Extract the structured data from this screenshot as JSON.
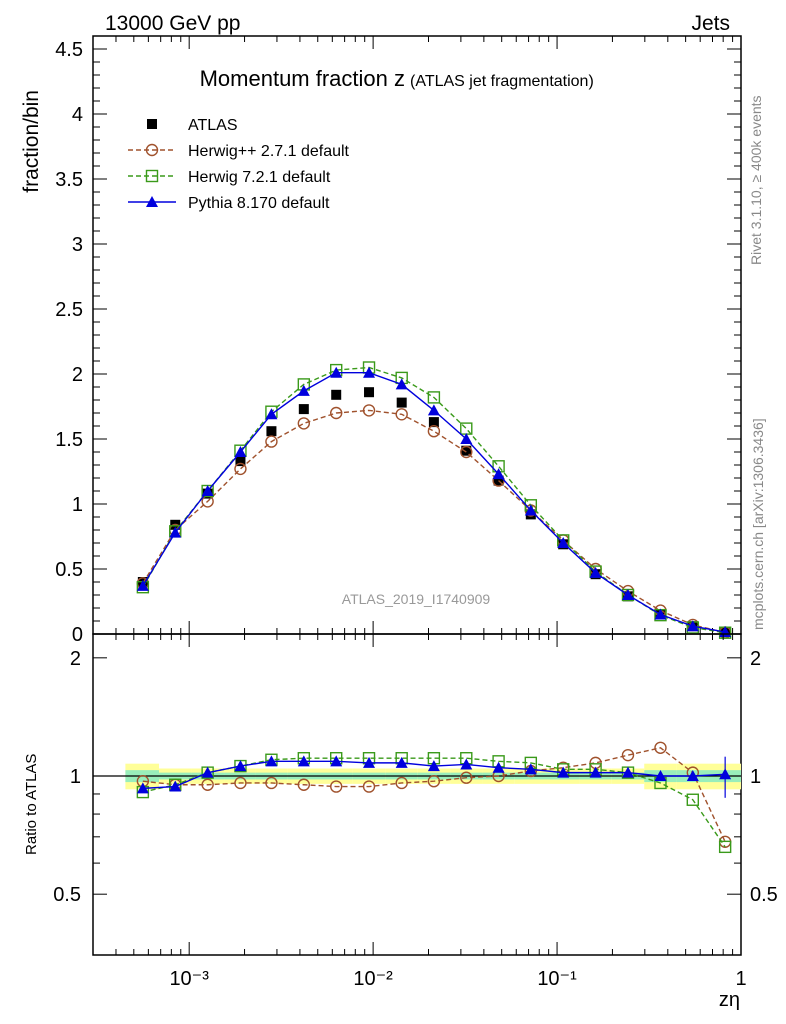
{
  "header": {
    "left_label": "13000 GeV pp",
    "right_label": "Jets",
    "side_label_top": "Rivet 3.1.10, ≥ 400k events",
    "side_label_bottom": "mcplots.cern.ch [arXiv:1306.3436]",
    "analysis_id": "ATLAS_2019_I1740909"
  },
  "colors": {
    "atlas": "#000000",
    "herwig_pp": "#a0522d",
    "herwig7": "#3a9a1a",
    "pythia": "#0000dd",
    "band_yellow": "#ffff99",
    "band_green": "#99eebb"
  },
  "chart_data": [
    {
      "type": "scatter",
      "title": "Momentum fraction z",
      "title_suffix": "(ATLAS jet fragmentation)",
      "ylabel": "fraction/bin",
      "xscale": "log",
      "xlim": [
        0.0003,
        1.0
      ],
      "ylim": [
        0,
        4.6
      ],
      "y_ticks": [
        "0",
        "0.5",
        "1",
        "1.5",
        "2",
        "2.5",
        "3",
        "3.5",
        "4",
        "4.5"
      ],
      "legend_position": "top-left",
      "x": [
        0.00056,
        0.00084,
        0.00126,
        0.0019,
        0.0028,
        0.0042,
        0.0063,
        0.0095,
        0.0143,
        0.0214,
        0.0321,
        0.0481,
        0.072,
        0.108,
        0.162,
        0.243,
        0.365,
        0.547,
        0.82
      ],
      "series": [
        {
          "name": "ATLAS",
          "marker": "filled-square",
          "values": [
            0.4,
            0.84,
            1.08,
            1.33,
            1.56,
            1.73,
            1.84,
            1.86,
            1.78,
            1.63,
            1.41,
            1.18,
            0.92,
            0.69,
            0.46,
            0.29,
            0.15,
            0.06,
            0.015
          ]
        },
        {
          "name": "Herwig++ 2.7.1 default",
          "marker": "open-circle",
          "line": "dashed",
          "values": [
            0.39,
            0.8,
            1.02,
            1.27,
            1.48,
            1.62,
            1.7,
            1.72,
            1.69,
            1.56,
            1.4,
            1.18,
            0.95,
            0.72,
            0.5,
            0.33,
            0.18,
            0.07,
            0.012
          ]
        },
        {
          "name": "Herwig 7.2.1 default",
          "marker": "open-square",
          "line": "dashed",
          "values": [
            0.36,
            0.79,
            1.1,
            1.41,
            1.71,
            1.92,
            2.03,
            2.05,
            1.97,
            1.82,
            1.58,
            1.29,
            0.99,
            0.72,
            0.48,
            0.3,
            0.145,
            0.05,
            0.01
          ]
        },
        {
          "name": "Pythia 8.170 default",
          "marker": "filled-triangle",
          "line": "solid",
          "values": [
            0.37,
            0.78,
            1.1,
            1.4,
            1.69,
            1.87,
            2.01,
            2.01,
            1.92,
            1.72,
            1.5,
            1.23,
            0.95,
            0.7,
            0.47,
            0.3,
            0.15,
            0.06,
            0.015
          ]
        }
      ]
    },
    {
      "type": "scatter",
      "ylabel": "Ratio to ATLAS",
      "xlabel": "zη",
      "xscale": "log",
      "xlim": [
        0.0003,
        1.0
      ],
      "ylim": [
        0.35,
        2.3
      ],
      "y_ticks": [
        "0.5",
        "1",
        "2"
      ],
      "x_ticks": [
        "10⁻³",
        "10⁻²",
        "10⁻¹",
        "1"
      ],
      "reference_line": 1.0,
      "x": [
        0.00056,
        0.00084,
        0.00126,
        0.0019,
        0.0028,
        0.0042,
        0.0063,
        0.0095,
        0.0143,
        0.0214,
        0.0321,
        0.0481,
        0.072,
        0.108,
        0.162,
        0.243,
        0.365,
        0.547,
        0.82
      ],
      "series": [
        {
          "name": "Herwig++ 2.7.1 default",
          "marker": "open-circle",
          "line": "dashed",
          "values": [
            0.97,
            0.95,
            0.95,
            0.96,
            0.96,
            0.95,
            0.94,
            0.94,
            0.96,
            0.97,
            0.99,
            1.0,
            1.03,
            1.05,
            1.08,
            1.13,
            1.18,
            1.02,
            0.68
          ]
        },
        {
          "name": "Herwig 7.2.1 default",
          "marker": "open-square",
          "line": "dashed",
          "values": [
            0.91,
            0.95,
            1.02,
            1.06,
            1.1,
            1.11,
            1.11,
            1.11,
            1.11,
            1.11,
            1.11,
            1.09,
            1.08,
            1.04,
            1.04,
            1.02,
            0.96,
            0.87,
            0.66
          ]
        },
        {
          "name": "Pythia 8.170 default",
          "marker": "filled-triangle",
          "line": "solid",
          "values": [
            0.93,
            0.94,
            1.02,
            1.06,
            1.09,
            1.09,
            1.09,
            1.08,
            1.08,
            1.06,
            1.07,
            1.05,
            1.04,
            1.02,
            1.02,
            1.02,
            1.0,
            1.0,
            1.01
          ]
        }
      ]
    }
  ]
}
